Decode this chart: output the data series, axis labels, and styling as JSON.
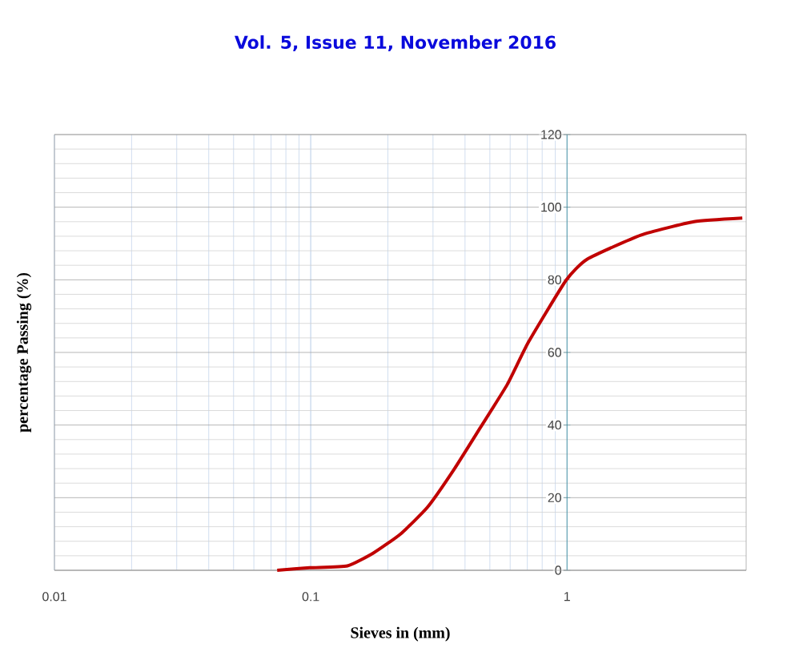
{
  "chart_data": {
    "type": "line",
    "annotations": [
      "Vol. 5, Issue 11, November 2016"
    ],
    "xlabel": "Sieves in (mm)",
    "ylabel": "percentage Passing  (%)",
    "log": "x",
    "xlim": [
      0.01,
      5
    ],
    "ylim": [
      0,
      120
    ],
    "xticks": [
      0.01,
      0.1,
      1
    ],
    "yticks": [
      0,
      20,
      40,
      60,
      80,
      100,
      120
    ],
    "grid": true,
    "marker": "none",
    "line_style": "solid",
    "x": [
      0.074,
      0.099,
      0.139,
      0.176,
      0.224,
      0.285,
      0.361,
      0.46,
      0.585,
      0.708,
      0.99,
      1.2,
      1.94,
      3.13,
      4.83
    ],
    "series": [
      {
        "color": "#c00000",
        "values": [
          0,
          0.7,
          1.2,
          4.8,
          10,
          17.3,
          27.6,
          39.4,
          51.2,
          62.9,
          79.8,
          85.7,
          92.3,
          96,
          97
        ]
      }
    ]
  }
}
